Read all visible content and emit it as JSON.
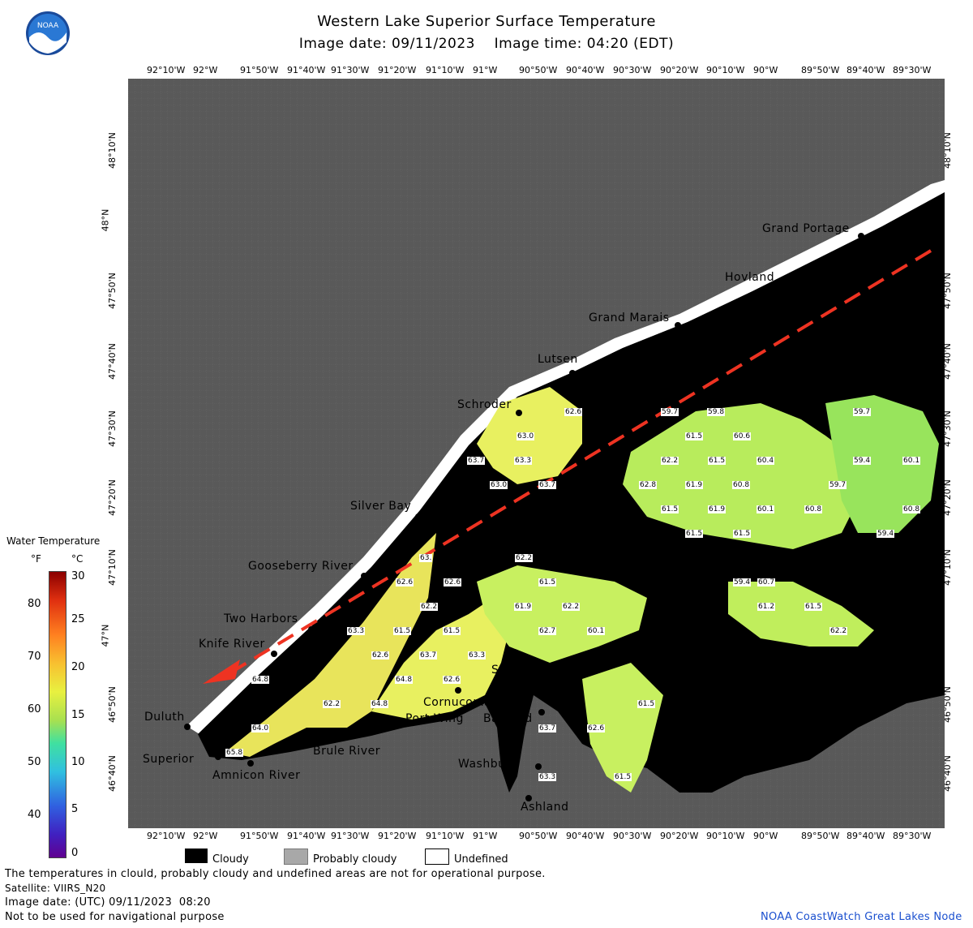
{
  "header": {
    "title": "Western Lake Superior Surface Temperature",
    "subtitle": "Image date: 09/11/2023    Image time: 04:20 (EDT)",
    "logo_text": "NOAA"
  },
  "axes": {
    "lon_ticks": [
      "92°10'W",
      "92°W",
      "91°50'W",
      "91°40'W",
      "91°30'W",
      "91°20'W",
      "91°10'W",
      "91°W",
      "90°50'W",
      "90°40'W",
      "90°30'W",
      "90°20'W",
      "90°10'W",
      "90°W",
      "89°50'W",
      "89°40'W",
      "89°30'W"
    ],
    "lat_ticks": [
      "48°10'N",
      "48°N",
      "47°50'N",
      "47°40'N",
      "47°30'N",
      "47°20'N",
      "47°10'N",
      "47°N",
      "46°50'N",
      "46°40'N"
    ],
    "lat_ticks_right": [
      "48°10'N",
      "48°N",
      "47°50'N",
      "47°40'N",
      "47°30'N",
      "47°20'N",
      "47°10'N",
      "47°N",
      "46°50'N",
      "46°40'N"
    ]
  },
  "places": [
    {
      "name": "Grand Portage"
    },
    {
      "name": "Hovland"
    },
    {
      "name": "Grand Marais"
    },
    {
      "name": "Lutsen"
    },
    {
      "name": "Schroder"
    },
    {
      "name": "Silver Bay"
    },
    {
      "name": "Gooseberry River"
    },
    {
      "name": "Two Harbors"
    },
    {
      "name": "Knife River"
    },
    {
      "name": "Duluth"
    },
    {
      "name": "Superior"
    },
    {
      "name": "Amnicon River"
    },
    {
      "name": "Brule River"
    },
    {
      "name": "Port Wing"
    },
    {
      "name": "Cornucopia"
    },
    {
      "name": "Sand River"
    },
    {
      "name": "Bayfield"
    },
    {
      "name": "Washburn"
    },
    {
      "name": "Ashland"
    }
  ],
  "temps": [
    "62.6",
    "63.0",
    "63.3",
    "63.7",
    "63.0",
    "63.7",
    "59.7",
    "59.8",
    "61.5",
    "60.6",
    "62.2",
    "61.5",
    "60.4",
    "59.7",
    "59.4",
    "60.1",
    "62.8",
    "61.9",
    "60.8",
    "59.7",
    "61.5",
    "61.9",
    "60.1",
    "60.8",
    "60.8",
    "61.5",
    "61.5",
    "59.4",
    "63.",
    "62.2",
    "62.6",
    "62.6",
    "61.5",
    "59.4",
    "60.7",
    "62.2",
    "61.9",
    "62.2",
    "61.2",
    "61.5",
    "62.7",
    "60.1",
    "62.2",
    "63.3",
    "61.5",
    "61.5",
    "62.6",
    "63.7",
    "63.3",
    "64.8",
    "62.6",
    "64.8",
    "62.2",
    "64.8",
    "64.0",
    "65.8",
    "61.5",
    "63.7",
    "62.6",
    "63.3",
    "61.5"
  ],
  "colorbar": {
    "title": "Water Temperature",
    "unit_f": "°F",
    "unit_c": "°C",
    "f_ticks": [
      "80",
      "70",
      "60",
      "50",
      "40"
    ],
    "c_ticks": [
      "30",
      "25",
      "20",
      "15",
      "10",
      "5",
      "0"
    ]
  },
  "legend": {
    "cloudy": "Cloudy",
    "probably_cloudy": "Probably cloudy",
    "undefined": "Undefined"
  },
  "footer": {
    "line1": "The temperatures in clould, probably cloudy and undefined areas are not for operational purpose.",
    "line2": "Satellite: VIIRS_N20",
    "line3": "Image date: (UTC) 09/11/2023  08:20",
    "line4": "Not to be used for navigational purpose",
    "credit": "NOAA CoastWatch Great Lakes Node"
  },
  "colors": {
    "land": "#5a5a5a",
    "cloud": "#000000",
    "arrow": "#ee3322",
    "warm": "#f0f060",
    "mid": "#c8f060",
    "cool": "#90e060",
    "credit": "#1a4fcf"
  }
}
